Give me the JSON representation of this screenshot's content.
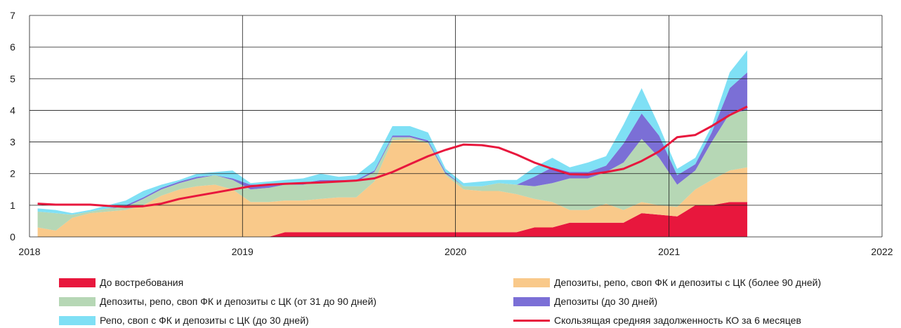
{
  "chart_data": {
    "type": "area",
    "x_range": [
      "2018-01-01",
      "2022-01-01"
    ],
    "ylim": [
      0,
      7
    ],
    "y_ticks": [
      "0",
      "1",
      "2",
      "3",
      "4",
      "5",
      "6",
      "7"
    ],
    "x_ticks": [
      "2018",
      "2019",
      "2020",
      "2021",
      "2022"
    ],
    "grid": true,
    "legend_position": "bottom",
    "stacked": true,
    "x": [
      "2018-01",
      "2018-02",
      "2018-03",
      "2018-04",
      "2018-05",
      "2018-06",
      "2018-07",
      "2018-08",
      "2018-09",
      "2018-10",
      "2018-11",
      "2018-12",
      "2019-01",
      "2019-02",
      "2019-03",
      "2019-04",
      "2019-05",
      "2019-06",
      "2019-07",
      "2019-08",
      "2019-09",
      "2019-10",
      "2019-11",
      "2019-12",
      "2020-01",
      "2020-02",
      "2020-03",
      "2020-04",
      "2020-05",
      "2020-06",
      "2020-07",
      "2020-08",
      "2020-09",
      "2020-10",
      "2020-11",
      "2020-12",
      "2021-01",
      "2021-02",
      "2021-03",
      "2021-04",
      "2021-05"
    ],
    "series": [
      {
        "name": "До востребования",
        "color": "#e8173d",
        "values": [
          0,
          0,
          0,
          0,
          0,
          0,
          0,
          0,
          0,
          0,
          0,
          0,
          0,
          0,
          0.15,
          0.15,
          0.15,
          0.15,
          0.15,
          0.15,
          0.15,
          0.15,
          0.15,
          0.15,
          0.15,
          0.15,
          0.15,
          0.15,
          0.3,
          0.3,
          0.45,
          0.45,
          0.45,
          0.45,
          0.75,
          0.7,
          0.65,
          1.0,
          1.0,
          1.1,
          1.1
        ]
      },
      {
        "name": "Депозиты, репо, своп ФК и депозиты с ЦК (более 90 дней)",
        "color": "#f9c98a",
        "values": [
          0.3,
          0.2,
          0.6,
          0.75,
          0.8,
          0.85,
          1.0,
          1.3,
          1.5,
          1.6,
          1.65,
          1.5,
          1.1,
          1.1,
          1.0,
          1.0,
          1.05,
          1.1,
          1.1,
          1.6,
          2.9,
          2.95,
          2.8,
          1.8,
          1.35,
          1.3,
          1.3,
          1.2,
          0.9,
          0.8,
          0.4,
          0.4,
          0.6,
          0.4,
          0.35,
          0.3,
          0.3,
          0.5,
          0.8,
          1.0,
          1.1
        ]
      },
      {
        "name": "Депозиты, репо, своп ФК и депозиты с ЦК (от 31 до 90 дней)",
        "color": "#b6d7b5",
        "values": [
          0.5,
          0.55,
          0.1,
          0.05,
          0.1,
          0.1,
          0.2,
          0.2,
          0.2,
          0.25,
          0.3,
          0.3,
          0.4,
          0.45,
          0.5,
          0.5,
          0.55,
          0.5,
          0.5,
          0.3,
          0.1,
          0.05,
          0.05,
          0.05,
          0.1,
          0.15,
          0.25,
          0.3,
          0.4,
          0.6,
          1.0,
          1.0,
          1.0,
          1.5,
          2.0,
          1.5,
          0.7,
          0.6,
          1.2,
          1.8,
          1.8
        ]
      },
      {
        "name": "Депозиты (до 30 дней)",
        "color": "#7b6fd6",
        "values": [
          0,
          0,
          0,
          0,
          0,
          0.05,
          0.05,
          0.05,
          0.05,
          0.05,
          0.0,
          0.05,
          0.15,
          0.1,
          0.05,
          0.05,
          0.05,
          0.05,
          0.05,
          0.05,
          0.05,
          0.05,
          0.05,
          0.05,
          0,
          0,
          0,
          0,
          0.3,
          0.5,
          0.2,
          0.2,
          0.2,
          0.6,
          0.8,
          0.7,
          0.3,
          0.2,
          0.3,
          0.8,
          1.2
        ]
      },
      {
        "name": "Репо, своп с ФК и депозиты с ЦК (до 30 дней)",
        "color": "#7fe0f5",
        "values": [
          0.1,
          0.1,
          0.05,
          0.05,
          0.1,
          0.15,
          0.2,
          0.1,
          0.05,
          0.1,
          0.1,
          0.25,
          0.05,
          0.1,
          0.1,
          0.15,
          0.2,
          0.1,
          0.15,
          0.3,
          0.3,
          0.3,
          0.25,
          0.1,
          0.1,
          0.15,
          0.1,
          0.15,
          0.3,
          0.3,
          0.15,
          0.3,
          0.3,
          0.6,
          0.8,
          0.3,
          0.2,
          0.2,
          0.2,
          0.5,
          0.7
        ]
      },
      {
        "name": "Скользящая средняя задолженность КО за 6 месяцев",
        "color": "#e8173d",
        "type": "line",
        "values": [
          1.05,
          1.02,
          1.02,
          1.02,
          0.98,
          0.95,
          0.97,
          1.05,
          1.2,
          1.3,
          1.4,
          1.5,
          1.6,
          1.65,
          1.68,
          1.7,
          1.72,
          1.75,
          1.78,
          1.85,
          2.05,
          2.3,
          2.55,
          2.75,
          2.92,
          2.9,
          2.82,
          2.6,
          2.35,
          2.15,
          1.98,
          1.97,
          2.05,
          2.15,
          2.4,
          2.7,
          3.15,
          3.22,
          3.5,
          3.85,
          4.12
        ]
      }
    ]
  },
  "legend": {
    "items": [
      {
        "label": "До востребования",
        "color": "#e8173d",
        "kind": "box"
      },
      {
        "label": "Депозиты, репо, своп ФК и депозиты с ЦК (более 90 дней)",
        "color": "#f9c98a",
        "kind": "box"
      },
      {
        "label": "Депозиты, репо, своп ФК и депозиты с ЦК (от 31 до 90 дней)",
        "color": "#b6d7b5",
        "kind": "box"
      },
      {
        "label": "Депозиты (до 30 дней)",
        "color": "#7b6fd6",
        "kind": "box"
      },
      {
        "label": "Репо, своп с ФК и депозиты с ЦК (до 30 дней)",
        "color": "#7fe0f5",
        "kind": "box"
      },
      {
        "label": "Скользящая средняя задолженность КО за 6 месяцев",
        "color": "#e8173d",
        "kind": "line"
      }
    ]
  }
}
